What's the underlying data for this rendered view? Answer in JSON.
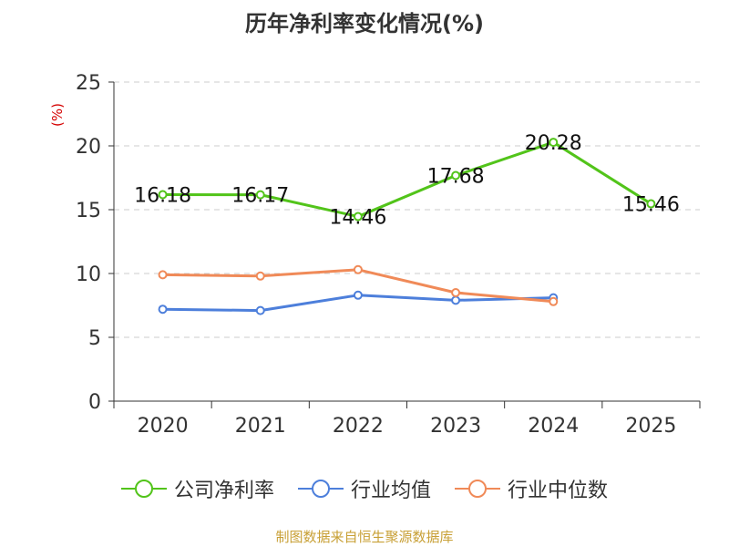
{
  "chart_data": {
    "type": "line",
    "title": "历年净利率变化情况(%)",
    "ylabel": "(%)",
    "xlabel": "",
    "categories": [
      "2020",
      "2021",
      "2022",
      "2023",
      "2024",
      "2025"
    ],
    "ylim": [
      0,
      25
    ],
    "yticks": [
      0,
      5,
      10,
      15,
      20,
      25
    ],
    "grid": "horizontal dashed",
    "legend_position": "bottom",
    "series": [
      {
        "name": "公司净利率",
        "color": "#52c41a",
        "values": [
          16.18,
          16.17,
          14.46,
          17.68,
          20.28,
          15.46
        ],
        "labels": [
          "16.18",
          "16.17",
          "14.46",
          "17.68",
          "20.28",
          "15.46"
        ]
      },
      {
        "name": "行业均值",
        "color": "#4d7fdb",
        "values": [
          7.2,
          7.1,
          8.3,
          7.9,
          8.1,
          null
        ]
      },
      {
        "name": "行业中位数",
        "color": "#f08a58",
        "values": [
          9.9,
          9.8,
          10.3,
          8.5,
          7.8,
          null
        ]
      }
    ]
  },
  "footer": {
    "source": "制图数据来自恒生聚源数据库"
  }
}
